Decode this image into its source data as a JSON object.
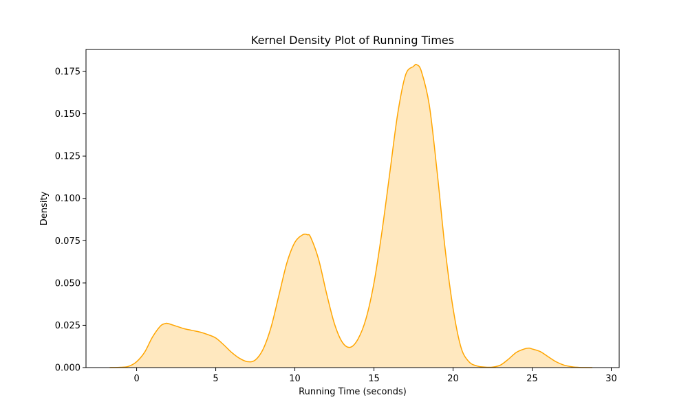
{
  "chart_data": {
    "type": "area",
    "title": "Kernel Density Plot of Running Times",
    "xlabel": "Running Time (seconds)",
    "ylabel": "Density",
    "xlim": [
      -3.2,
      30.5
    ],
    "ylim": [
      0,
      0.188
    ],
    "xticks": [
      0,
      5,
      10,
      15,
      20,
      25,
      30
    ],
    "xtick_labels": [
      "0",
      "5",
      "10",
      "15",
      "20",
      "25",
      "30"
    ],
    "yticks": [
      0,
      0.025,
      0.05,
      0.075,
      0.1,
      0.125,
      0.15,
      0.175
    ],
    "ytick_labels": [
      "0.000",
      "0.025",
      "0.050",
      "0.075",
      "0.100",
      "0.125",
      "0.150",
      "0.175"
    ],
    "grid": false,
    "line_color": "#FFA500",
    "fill_color": "#FFA500",
    "fill_opacity": 0.25,
    "series": [
      {
        "x": [
          -1.7,
          -1.0,
          -0.5,
          0.0,
          0.5,
          1.0,
          1.5,
          1.8,
          2.0,
          2.5,
          3.0,
          3.5,
          4.0,
          4.5,
          5.0,
          5.5,
          6.0,
          6.5,
          7.0,
          7.5,
          8.0,
          8.5,
          9.0,
          9.5,
          10.0,
          10.5,
          10.8,
          11.0,
          11.5,
          12.0,
          12.5,
          13.0,
          13.5,
          14.0,
          14.5,
          15.0,
          15.5,
          16.0,
          16.5,
          17.0,
          17.5,
          17.7,
          18.0,
          18.5,
          19.0,
          19.5,
          20.0,
          20.5,
          21.0,
          21.5,
          22.0,
          22.5,
          23.0,
          23.5,
          24.0,
          24.5,
          24.8,
          25.0,
          25.5,
          26.0,
          26.5,
          27.0,
          27.5,
          28.0,
          28.8
        ],
        "y": [
          0.0,
          0.0002,
          0.0008,
          0.0035,
          0.009,
          0.018,
          0.0245,
          0.026,
          0.026,
          0.0245,
          0.023,
          0.022,
          0.021,
          0.0195,
          0.0175,
          0.0135,
          0.009,
          0.0055,
          0.0035,
          0.0045,
          0.011,
          0.024,
          0.043,
          0.062,
          0.074,
          0.0785,
          0.0785,
          0.077,
          0.064,
          0.044,
          0.026,
          0.015,
          0.012,
          0.017,
          0.029,
          0.05,
          0.08,
          0.115,
          0.15,
          0.173,
          0.178,
          0.179,
          0.175,
          0.155,
          0.115,
          0.07,
          0.035,
          0.012,
          0.0035,
          0.001,
          0.0003,
          0.0003,
          0.0015,
          0.005,
          0.009,
          0.011,
          0.0115,
          0.011,
          0.0095,
          0.0065,
          0.0035,
          0.0015,
          0.0005,
          0.0001,
          0.0
        ]
      }
    ]
  }
}
